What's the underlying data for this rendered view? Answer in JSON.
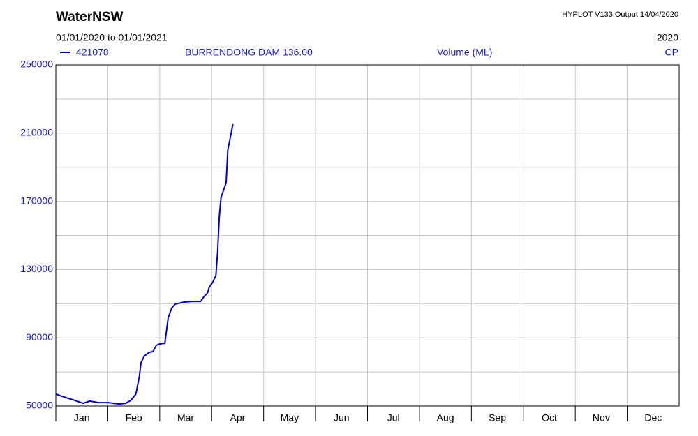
{
  "chart_data": {
    "type": "line",
    "title": "WaterNSW",
    "program": "HYPLOT V133  Output 14/04/2020",
    "period": "01/01/2020  to  01/01/2021",
    "year": "2020",
    "site_name": "BURRENDONG DAM  136.00",
    "y_label": "Volume (ML)",
    "quality_code": "CP",
    "categories": [
      "Jan",
      "Feb",
      "Mar",
      "Apr",
      "May",
      "Jun",
      "Jul",
      "Aug",
      "Sep",
      "Oct",
      "Nov",
      "Dec"
    ],
    "xlim": [
      0,
      366
    ],
    "ylim": [
      50000,
      250000
    ],
    "yticks": [
      50000,
      90000,
      130000,
      170000,
      210000,
      250000
    ],
    "minor_yticks": [
      70000,
      110000,
      150000,
      190000,
      230000
    ],
    "grid": true,
    "series": [
      {
        "name": "421078",
        "color": "#0000cc",
        "x": [
          0,
          6,
          10,
          16,
          20,
          25,
          31,
          37,
          41,
          44,
          47,
          49,
          50,
          52,
          55,
          57,
          59,
          61,
          64,
          66,
          68,
          70,
          75,
          80,
          85,
          87,
          89,
          90,
          92,
          94,
          95,
          96,
          97,
          100,
          101,
          104
        ],
        "values": [
          57000,
          54900,
          53700,
          51600,
          52900,
          52000,
          52000,
          51200,
          51600,
          53300,
          57000,
          67200,
          75400,
          79400,
          81500,
          81900,
          85600,
          86400,
          86800,
          101900,
          107300,
          109700,
          110900,
          111300,
          111300,
          114200,
          116200,
          119500,
          122400,
          126500,
          140800,
          161200,
          172300,
          180900,
          200100,
          215200
        ]
      }
    ]
  }
}
